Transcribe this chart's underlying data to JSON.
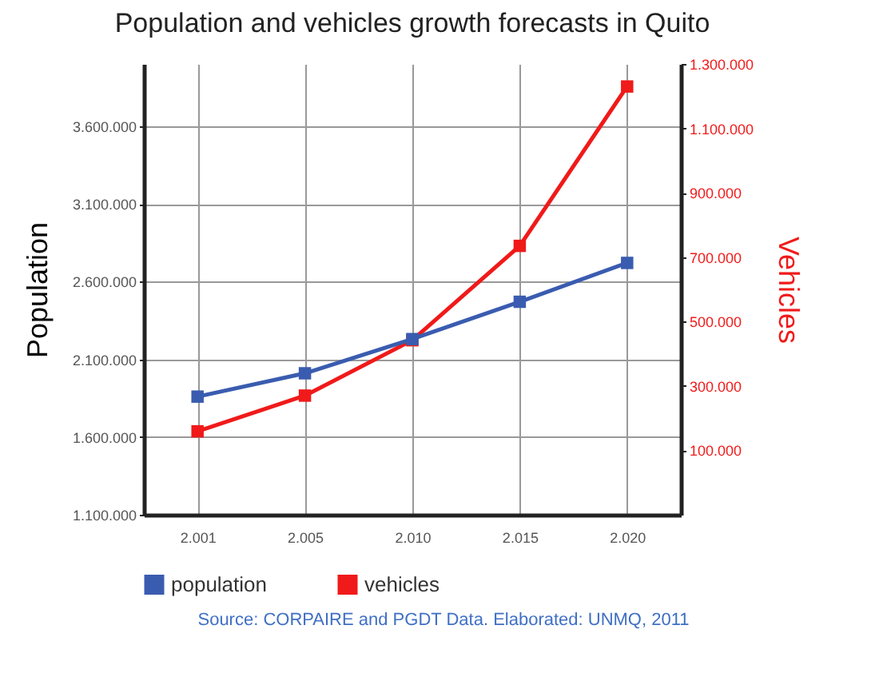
{
  "chart_data": {
    "type": "line",
    "title": "Population and vehicles growth forecasts in Quito",
    "ylabel": "Population",
    "y2label": "Vehicles",
    "categories": [
      "2.001",
      "2.005",
      "2.010",
      "2.015",
      "2.020"
    ],
    "series": [
      {
        "name": "population",
        "color": "#3a5cb0",
        "values": [
          1860000,
          2010000,
          2230000,
          2470000,
          2720000
        ]
      },
      {
        "name": "vehicles",
        "color": "#f01a1a",
        "axis": "y2",
        "values": [
          159000,
          270000,
          442000,
          735000,
          1230000
        ]
      }
    ],
    "ylim": [
      1100000,
      4000000
    ],
    "yticks": [
      {
        "value": 1100000,
        "label": "1.100.000"
      },
      {
        "value": 1600000,
        "label": "1.600.000"
      },
      {
        "value": 2100000,
        "label": "2.100.000"
      },
      {
        "value": 2600000,
        "label": "2.600.000"
      },
      {
        "value": 3100000,
        "label": "3.100.000"
      },
      {
        "value": 3600000,
        "label": "3.600.000"
      }
    ],
    "y2lim": [
      -100000,
      1300000
    ],
    "y2ticks": [
      {
        "value": 100000,
        "label": "100.000"
      },
      {
        "value": 300000,
        "label": "300.000"
      },
      {
        "value": 500000,
        "label": "500.000"
      },
      {
        "value": 700000,
        "label": "700.000"
      },
      {
        "value": 900000,
        "label": "900.000"
      },
      {
        "value": 1100000,
        "label": "1.100.000"
      },
      {
        "value": 1300000,
        "label": "1.300.000"
      }
    ],
    "grid": true,
    "legend": "bottom",
    "marker": "square",
    "line_style": "solid",
    "annotations": [
      "Source: CORPAIRE and PGDT Data. Elaborated: UNMQ, 2011"
    ]
  }
}
